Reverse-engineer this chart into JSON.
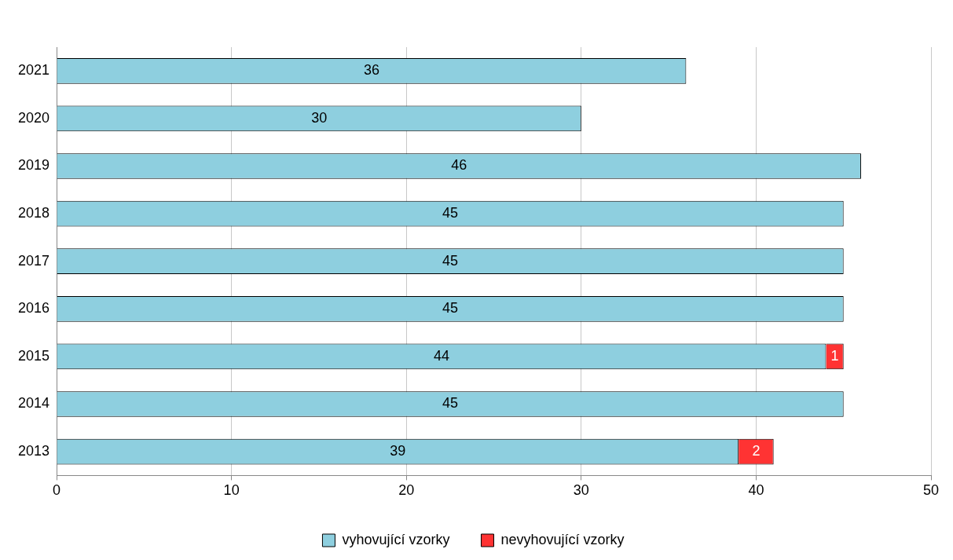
{
  "chart_data": {
    "type": "bar",
    "orientation": "horizontal",
    "stacked": true,
    "categories": [
      "2021",
      "2020",
      "2019",
      "2018",
      "2017",
      "2016",
      "2015",
      "2014",
      "2013"
    ],
    "series": [
      {
        "name": "vyhovující vzorky",
        "color": "#8ecfdf",
        "values": [
          36,
          30,
          46,
          45,
          45,
          45,
          44,
          45,
          39
        ]
      },
      {
        "name": "nevyhovující vzorky",
        "color": "#ff3333",
        "values": [
          null,
          null,
          null,
          null,
          null,
          null,
          1,
          null,
          2
        ]
      }
    ],
    "xlim": [
      0,
      50
    ],
    "xticks": [
      0,
      10,
      20,
      30,
      40,
      50
    ],
    "grid": "x",
    "legend": "bottom",
    "data_labels": true
  }
}
